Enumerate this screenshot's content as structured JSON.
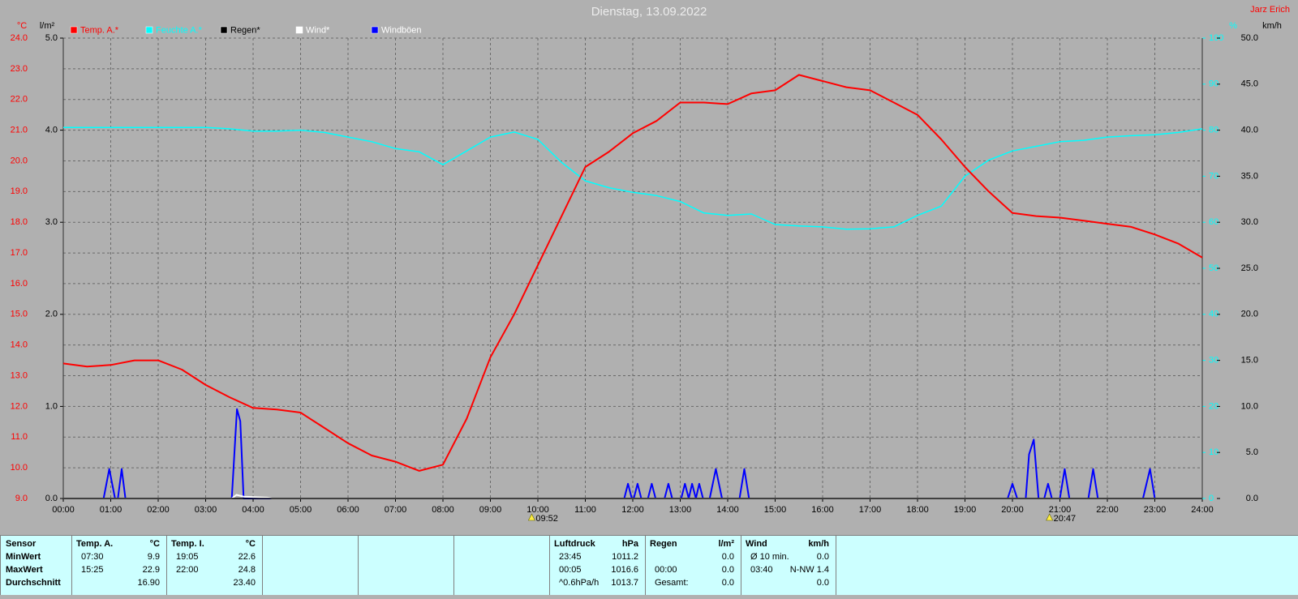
{
  "chart_data": {
    "type": "line",
    "title": "Dienstag, 13.09.2022",
    "author": "Jarz Erich",
    "ylabel": "°C",
    "rain_label": "l/m²",
    "y2label": "%",
    "wind_label": "km/h",
    "xlim": [
      0,
      24
    ],
    "xticks": [
      {
        "value": 0,
        "label": "00:00"
      },
      {
        "value": 1,
        "label": "01:00"
      },
      {
        "value": 2,
        "label": "02:00"
      },
      {
        "value": 3,
        "label": "03:00"
      },
      {
        "value": 4,
        "label": "04:00"
      },
      {
        "value": 5,
        "label": "05:00"
      },
      {
        "value": 6,
        "label": "06:00"
      },
      {
        "value": 7,
        "label": "07:00"
      },
      {
        "value": 8,
        "label": "08:00"
      },
      {
        "value": 9,
        "label": "09:00"
      },
      {
        "value": 10,
        "label": "10:00"
      },
      {
        "value": 11,
        "label": "11:00"
      },
      {
        "value": 12,
        "label": "12:00"
      },
      {
        "value": 13,
        "label": "13:00"
      },
      {
        "value": 14,
        "label": "14:00"
      },
      {
        "value": 15,
        "label": "15:00"
      },
      {
        "value": 16,
        "label": "16:00"
      },
      {
        "value": 17,
        "label": "17:00"
      },
      {
        "value": 18,
        "label": "18:00"
      },
      {
        "value": 19,
        "label": "19:00"
      },
      {
        "value": 20,
        "label": "20:00"
      },
      {
        "value": 21,
        "label": "21:00"
      },
      {
        "value": 22,
        "label": "22:00"
      },
      {
        "value": 23,
        "label": "23:00"
      },
      {
        "value": 24,
        "label": "24:00"
      }
    ],
    "ylim": [
      9,
      24
    ],
    "yticks": [
      {
        "value": 9,
        "label": "9.0"
      },
      {
        "value": 10,
        "label": "10.0"
      },
      {
        "value": 11,
        "label": "11.0"
      },
      {
        "value": 12,
        "label": "12.0"
      },
      {
        "value": 13,
        "label": "13.0"
      },
      {
        "value": 14,
        "label": "14.0"
      },
      {
        "value": 15,
        "label": "15.0"
      },
      {
        "value": 16,
        "label": "16.0"
      },
      {
        "value": 17,
        "label": "17.0"
      },
      {
        "value": 18,
        "label": "18.0"
      },
      {
        "value": 19,
        "label": "19.0"
      },
      {
        "value": 20,
        "label": "20.0"
      },
      {
        "value": 21,
        "label": "21.0"
      },
      {
        "value": 22,
        "label": "22.0"
      },
      {
        "value": 23,
        "label": "23.0"
      },
      {
        "value": 24,
        "label": "24.0"
      }
    ],
    "rain_lim": [
      0,
      5
    ],
    "rain_ticks": [
      {
        "value": 0,
        "label": "0.0"
      },
      {
        "value": 1,
        "label": "1.0"
      },
      {
        "value": 2,
        "label": "2.0"
      },
      {
        "value": 3,
        "label": "3.0"
      },
      {
        "value": 4,
        "label": "4.0"
      },
      {
        "value": 5,
        "label": "5.0"
      }
    ],
    "y2lim": [
      0,
      100
    ],
    "y2ticks": [
      0,
      10,
      20,
      30,
      40,
      50,
      60,
      70,
      80,
      90,
      100
    ],
    "wind_lim": [
      0,
      50
    ],
    "wind_ticks": [
      {
        "value": 0,
        "label": "0.0"
      },
      {
        "value": 5,
        "label": "5.0"
      },
      {
        "value": 10,
        "label": "10.0"
      },
      {
        "value": 15,
        "label": "15.0"
      },
      {
        "value": 20,
        "label": "20.0"
      },
      {
        "value": 25,
        "label": "25.0"
      },
      {
        "value": 30,
        "label": "30.0"
      },
      {
        "value": 35,
        "label": "35.0"
      },
      {
        "value": 40,
        "label": "40.0"
      },
      {
        "value": 45,
        "label": "45.0"
      },
      {
        "value": 50,
        "label": "50.0"
      }
    ],
    "grid": true,
    "legend": "top",
    "series": [
      {
        "name": "Temp. A.*",
        "color": "#ff0000",
        "legend_text_color": "#ff0000",
        "axis": "y",
        "x": [
          0,
          0.5,
          1,
          1.5,
          2,
          2.5,
          3,
          3.5,
          4,
          4.5,
          5,
          5.5,
          6,
          6.5,
          7,
          7.5,
          8,
          8.5,
          9,
          9.5,
          10,
          10.5,
          11,
          11.5,
          12,
          12.5,
          13,
          13.5,
          14,
          14.5,
          15,
          15.5,
          16,
          16.5,
          17,
          17.5,
          18,
          18.5,
          19,
          19.5,
          20,
          20.5,
          21,
          21.5,
          22,
          22.5,
          23,
          23.5,
          24
        ],
        "values": [
          13.4,
          13.3,
          13.35,
          13.5,
          13.5,
          13.2,
          12.7,
          12.3,
          11.95,
          11.9,
          11.8,
          11.3,
          10.8,
          10.4,
          10.2,
          9.9,
          10.1,
          11.6,
          13.6,
          15.0,
          16.6,
          18.2,
          19.8,
          20.3,
          20.9,
          21.3,
          21.9,
          21.9,
          21.85,
          22.2,
          22.3,
          22.8,
          22.6,
          22.4,
          22.3,
          21.9,
          21.5,
          20.7,
          19.8,
          19.0,
          18.3,
          18.2,
          18.15,
          18.05,
          17.95,
          17.85,
          17.6,
          17.3,
          16.85
        ]
      },
      {
        "name": "Feuchte A.*",
        "color": "#00ffff",
        "legend_text_color": "#00ffff",
        "axis": "y2",
        "x": [
          0,
          0.5,
          1,
          1.5,
          2,
          2.5,
          3,
          3.5,
          4,
          4.5,
          5,
          5.5,
          6,
          6.5,
          7,
          7.5,
          8,
          8.5,
          9,
          9.5,
          10,
          10.5,
          11,
          11.5,
          12,
          12.5,
          13,
          13.5,
          14,
          14.5,
          15,
          15.5,
          16,
          16.5,
          17,
          17.5,
          18,
          18.5,
          19,
          19.5,
          20,
          20.5,
          21,
          21.5,
          22,
          22.5,
          23,
          23.5,
          24
        ],
        "values": [
          80.6,
          80.6,
          80.6,
          80.6,
          80.6,
          80.6,
          80.6,
          80.3,
          79.8,
          79.8,
          80.0,
          79.5,
          78.5,
          77.5,
          76,
          75.3,
          72.5,
          75.5,
          78.5,
          79.6,
          78,
          73,
          69,
          67.5,
          66.5,
          65.8,
          64.5,
          62,
          61.5,
          61.8,
          59.5,
          59.2,
          59,
          58.5,
          58.6,
          59,
          61.5,
          63.5,
          70,
          73.5,
          75.5,
          76.5,
          77.5,
          77.8,
          78.5,
          78.8,
          79,
          79.5,
          80.3
        ]
      },
      {
        "name": "Regen*",
        "color": "#000000",
        "legend_text_color": "#000000",
        "axis": "rain",
        "x": [
          0,
          24
        ],
        "values": [
          0,
          0
        ]
      },
      {
        "name": "Wind*",
        "color": "#ffffff",
        "legend_text_color": "#ffffff",
        "axis": "wind",
        "x": [
          0,
          3.55,
          3.65,
          3.8,
          4.3,
          4.4,
          24
        ],
        "values": [
          0,
          0,
          0.4,
          0.2,
          0.1,
          0,
          0
        ]
      },
      {
        "name": "Windböen",
        "color": "#0000ff",
        "legend_text_color": "#ffffff",
        "axis": "wind",
        "x": [
          0,
          0.85,
          0.97,
          1.09,
          1.15,
          1.23,
          1.31,
          3.55,
          3.66,
          3.73,
          3.8,
          11.82,
          11.9,
          11.98,
          12.02,
          12.1,
          12.18,
          12.32,
          12.4,
          12.48,
          12.67,
          12.75,
          12.83,
          13.02,
          13.1,
          13.18,
          13.25,
          13.33,
          13.4,
          13.48,
          13.62,
          13.75,
          13.88,
          14.25,
          14.35,
          14.45,
          19.9,
          20.0,
          20.1,
          20.28,
          20.35,
          20.45,
          20.55,
          20.67,
          20.75,
          20.83,
          21.0,
          21.1,
          21.2,
          21.6,
          21.7,
          21.8,
          22.75,
          22.9,
          23.0,
          24
        ],
        "values": [
          0,
          0,
          3.2,
          0,
          0,
          3.2,
          0,
          0,
          9.7,
          8.4,
          0,
          0,
          1.6,
          0,
          0,
          1.6,
          0,
          0,
          1.6,
          0,
          0,
          1.6,
          0,
          0,
          1.6,
          0,
          1.6,
          0,
          1.6,
          0,
          0,
          3.2,
          0,
          0,
          3.2,
          0,
          0,
          1.6,
          0,
          0,
          4.8,
          6.4,
          0,
          0,
          1.6,
          0,
          0,
          3.2,
          0,
          0,
          3.2,
          0,
          0,
          3.2,
          0,
          0
        ]
      }
    ],
    "annotations": [
      {
        "x": 9.87,
        "label": "09:52"
      },
      {
        "x": 20.78,
        "label": "20:47"
      }
    ]
  },
  "table": {
    "sensor": [
      "Sensor",
      "MinWert",
      "MaxWert",
      "Durchschnitt"
    ],
    "columns": [
      {
        "header": [
          "Temp. A.",
          "°C"
        ],
        "rows": [
          [
            "07:30",
            "9.9"
          ],
          [
            "15:25",
            "22.9"
          ],
          [
            null,
            "16.90"
          ]
        ]
      },
      {
        "header": [
          "Temp. I.",
          "°C"
        ],
        "rows": [
          [
            "19:05",
            "22.6"
          ],
          [
            "22:00",
            "24.8"
          ],
          [
            null,
            "23.40"
          ]
        ]
      },
      {
        "header": [
          "Luftdruck",
          "hPa"
        ],
        "rows": [
          [
            "23:45",
            "1011.2"
          ],
          [
            "00:05",
            "1016.6"
          ],
          [
            "^0.6hPa/h",
            "1013.7"
          ]
        ]
      },
      {
        "header": [
          "Regen",
          "l/m²"
        ],
        "rows": [
          [
            null,
            "0.0"
          ],
          [
            "00:00",
            "0.0"
          ],
          [
            "Gesamt:",
            "0.0"
          ]
        ]
      },
      {
        "header": [
          "Wind",
          "km/h"
        ],
        "rows": [
          [
            "Ø 10 min.",
            "0.0"
          ],
          [
            "03:40",
            "N-NW 1.4"
          ],
          [
            null,
            "0.0"
          ]
        ]
      }
    ]
  }
}
